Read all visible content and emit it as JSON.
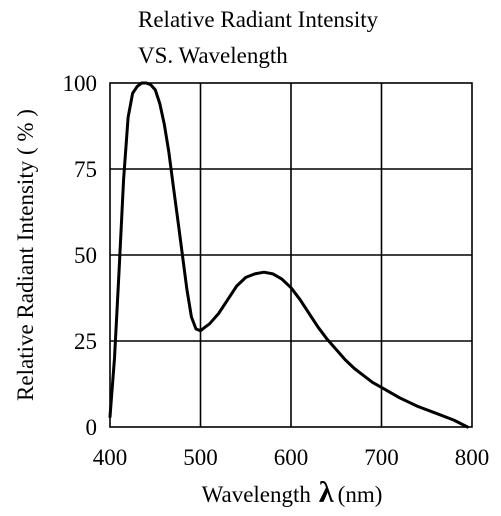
{
  "chart_data": {
    "type": "line",
    "title_line1": "Relative Radiant Intensity",
    "title_line2": "VS. Wavelength",
    "xlabel_text": "Wavelength",
    "xlabel_symbol": "λ",
    "xlabel_unit": "(nm)",
    "ylabel": "Relative Radiant Intensity ( % )",
    "xlim": [
      400,
      800
    ],
    "ylim": [
      0,
      100
    ],
    "x_ticks": [
      "400",
      "500",
      "600",
      "700",
      "800"
    ],
    "y_ticks": [
      "0",
      "25",
      "50",
      "75",
      "100"
    ],
    "grid": true,
    "series": [
      {
        "color": "#000000",
        "x": [
          400,
          405,
          410,
          415,
          420,
          425,
          430,
          435,
          440,
          445,
          450,
          455,
          460,
          465,
          470,
          475,
          480,
          485,
          490,
          495,
          500,
          505,
          510,
          520,
          530,
          540,
          550,
          560,
          570,
          580,
          590,
          600,
          610,
          620,
          630,
          640,
          650,
          660,
          670,
          680,
          690,
          700,
          720,
          740,
          760,
          780,
          795
        ],
        "y": [
          3,
          20,
          45,
          72,
          90,
          97,
          99,
          100,
          100,
          99.5,
          98,
          94,
          88,
          80,
          70,
          60,
          50,
          40,
          32,
          28.5,
          28,
          29,
          30,
          33,
          37,
          41,
          43.5,
          44.5,
          45,
          44.5,
          43,
          40.5,
          37,
          33,
          29,
          25.5,
          22.5,
          19.5,
          17,
          15,
          13,
          11.5,
          8.5,
          6,
          4,
          2,
          0
        ]
      }
    ]
  }
}
